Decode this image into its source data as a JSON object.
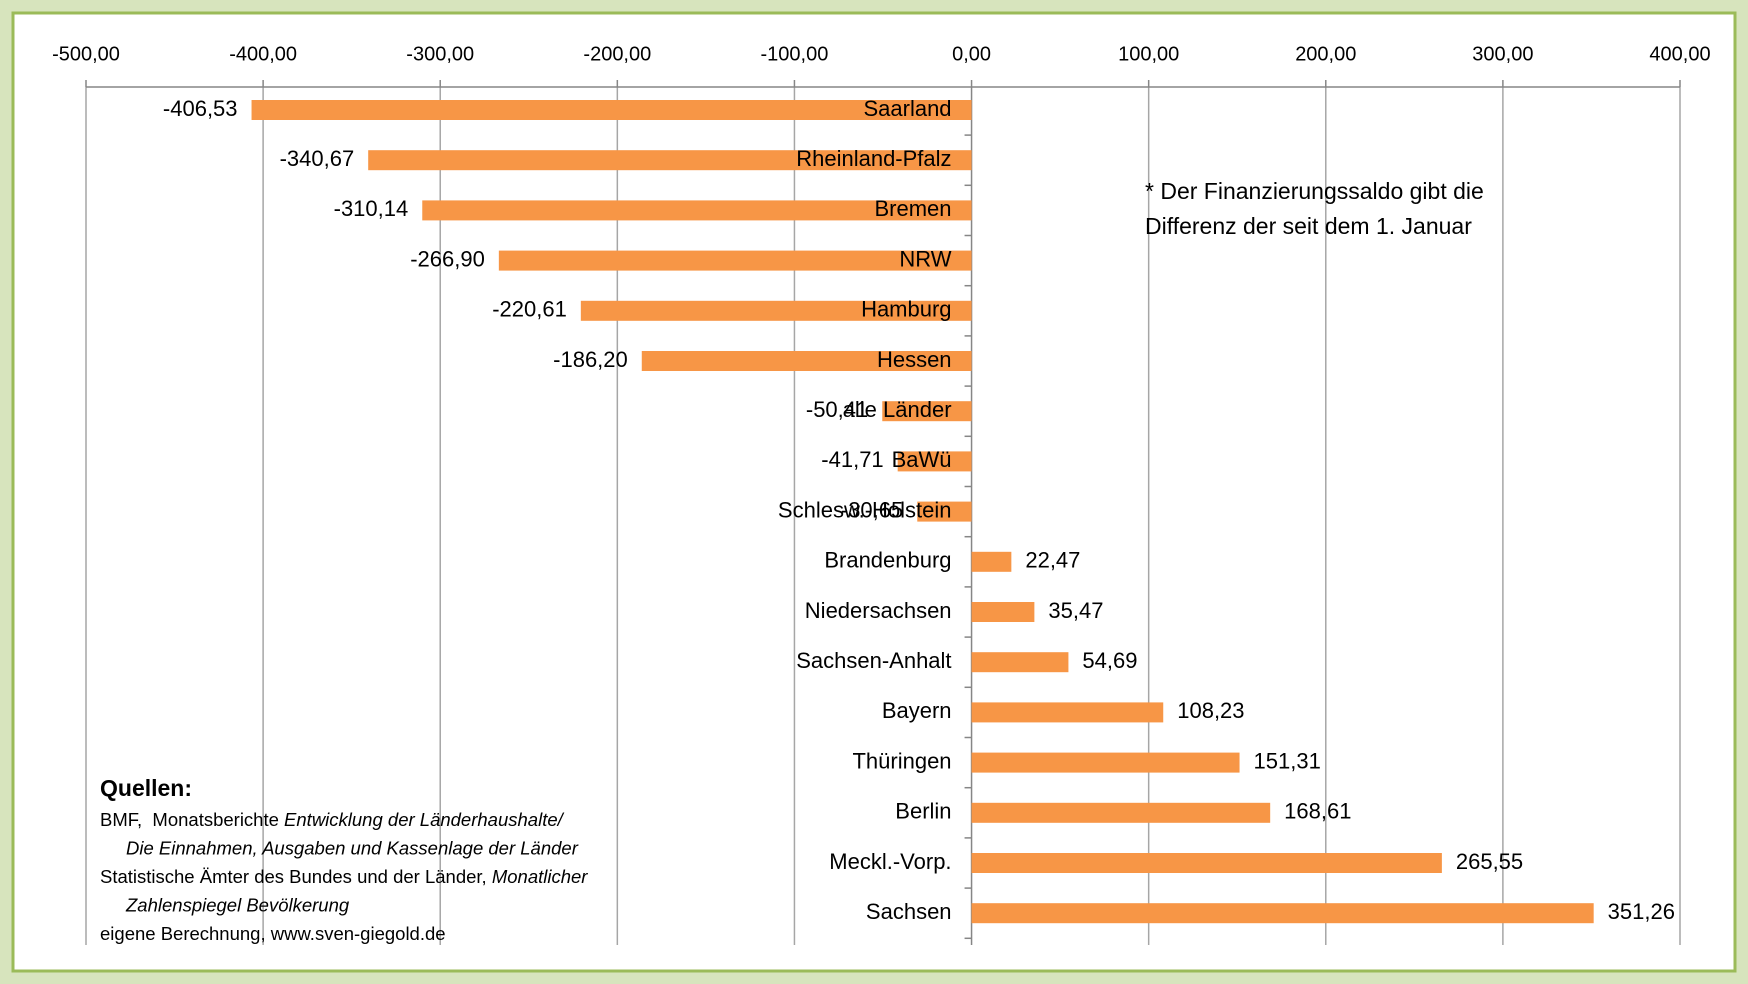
{
  "chart_data": {
    "type": "barh",
    "categories": [
      "Saarland",
      "Rheinland-Pfalz",
      "Bremen",
      "NRW",
      "Hamburg",
      "Hessen",
      "alle Länder",
      "BaWü",
      "Schlesw.-Holstein",
      "Brandenburg",
      "Niedersachsen",
      "Sachsen-Anhalt",
      "Bayern",
      "Thüringen",
      "Berlin",
      "Meckl.-Vorp.",
      "Sachsen"
    ],
    "values": [
      -406.53,
      -340.67,
      -310.14,
      -266.9,
      -220.61,
      -186.2,
      -50.41,
      -41.71,
      -30.65,
      22.47,
      35.47,
      54.69,
      108.23,
      151.31,
      168.61,
      265.55,
      351.26
    ],
    "value_labels": [
      "-406,53",
      "-340,67",
      "-310,14",
      "-266,90",
      "-220,61",
      "-186,20",
      "-50,41",
      "-41,71",
      "-30,65",
      "22,47",
      "35,47",
      "54,69",
      "108,23",
      "151,31",
      "168,61",
      "265,55",
      "351,26"
    ],
    "color": "#f79646",
    "xlim": [
      -500,
      400
    ],
    "xticks": [
      {
        "value": -500,
        "label": "-500,00"
      },
      {
        "value": -400,
        "label": "-400,00"
      },
      {
        "value": -300,
        "label": "-300,00"
      },
      {
        "value": -200,
        "label": "-200,00"
      },
      {
        "value": -100,
        "label": "-100,00"
      },
      {
        "value": 0,
        "label": "0,00"
      },
      {
        "value": 100,
        "label": "100,00"
      },
      {
        "value": 200,
        "label": "200,00"
      },
      {
        "value": 300,
        "label": "300,00"
      },
      {
        "value": 400,
        "label": "400,00"
      }
    ],
    "grid": true,
    "annotations": [
      "* Der Finanzierungssaldo gibt die",
      "Differenz der seit dem 1. Januar"
    ],
    "sources": {
      "title": "Quellen:",
      "lines": [
        [
          {
            "text": "BMF,  Monatsberichte "
          },
          {
            "text": "Entwicklung der Länderhaushalte/",
            "italic": true
          }
        ],
        [
          {
            "text": "Die Einnahmen, Ausgaben und Kassenlage der Länder",
            "italic": true
          }
        ],
        [
          {
            "text": "Statistische Ämter des Bundes und der Länder, "
          },
          {
            "text": "Monatlicher",
            "italic": true
          }
        ],
        [
          {
            "text": "Zahlenspiegel Bevölkerung",
            "italic": true
          }
        ],
        [
          {
            "text": "eigene Berechnung, www.sven-giegold.de"
          }
        ]
      ]
    }
  }
}
